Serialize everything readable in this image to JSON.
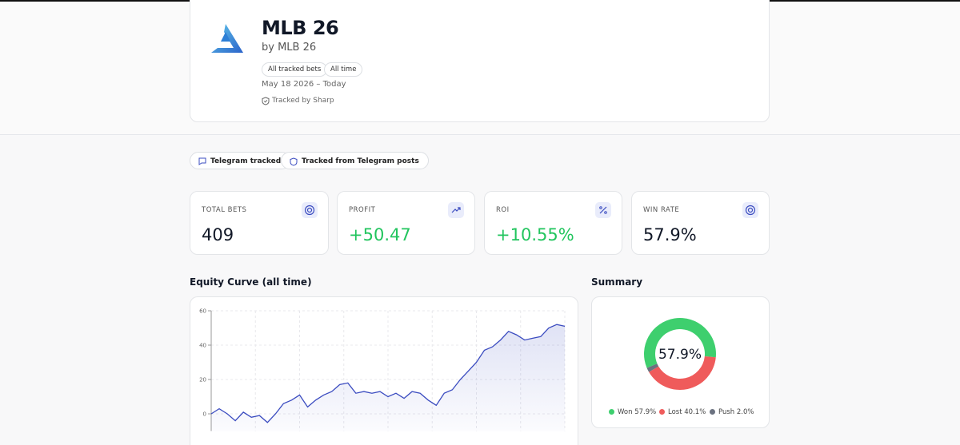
{
  "header": {
    "title": "MLB 26",
    "byline": "by MLB 26",
    "chips": [
      "All tracked bets",
      "All time"
    ],
    "date": "May 18 2026 – Today",
    "tracked": "Tracked by Sharp"
  },
  "badges": [
    "Telegram tracked",
    "Tracked from Telegram posts"
  ],
  "stats": [
    {
      "label": "TOTAL BETS",
      "value": "409"
    },
    {
      "label": "PROFIT",
      "value": "+50.47"
    },
    {
      "label": "ROI",
      "value": "+10.55%"
    },
    {
      "label": "WIN RATE",
      "value": "57.9%"
    }
  ],
  "chart_data": [
    {
      "type": "line",
      "title": "Equity Curve (all time)",
      "color": "#3b4cc0",
      "values": [
        0,
        3,
        0,
        -4,
        1,
        -2,
        -1,
        -5,
        0,
        6,
        8,
        11,
        4,
        8,
        11,
        13,
        17,
        18,
        12,
        13,
        12,
        13,
        10,
        12,
        9,
        13,
        12,
        8,
        5,
        12,
        14,
        20,
        25,
        30,
        37,
        39,
        43,
        48,
        46,
        43,
        44,
        45,
        50,
        52,
        51
      ],
      "ylim": [
        -10,
        60
      ],
      "yticks": [
        0,
        20,
        40,
        60
      ],
      "grid": true
    },
    {
      "type": "donut",
      "title": "Summary",
      "categories": [
        "Won",
        "Lost",
        "Push"
      ],
      "values": [
        57.9,
        40.1,
        2.0
      ],
      "value_labels": [
        "57.9%",
        "40.1%",
        "2.0%"
      ],
      "colors": [
        "#3ecf6e",
        "#ef5b5b",
        "#6b7280"
      ]
    }
  ]
}
